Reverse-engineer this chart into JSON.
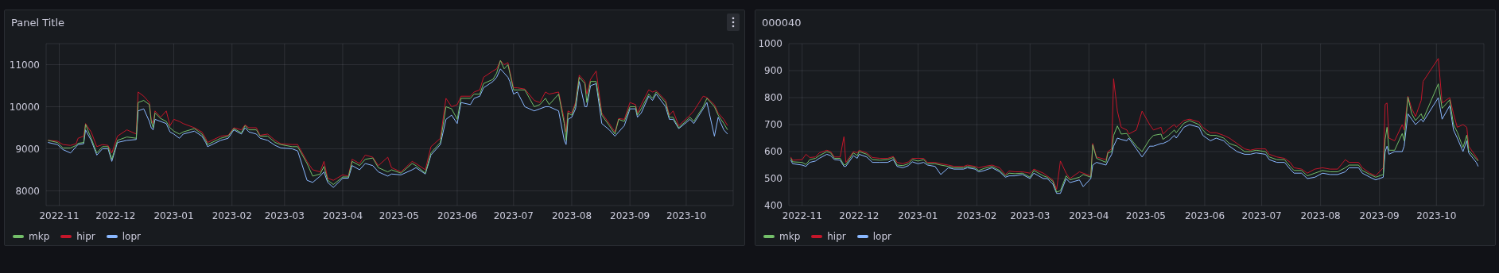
{
  "chart_data": [
    {
      "type": "line",
      "title": "Panel Title",
      "grid": true,
      "legend": "bottom",
      "xlim": [
        "2022-10-25",
        "2023-10-26"
      ],
      "ylim": [
        7650,
        11500
      ],
      "yticks": [
        8000,
        9000,
        10000,
        11000
      ],
      "xticks": [
        {
          "value": "2022-11-01",
          "label": "2022-11"
        },
        {
          "value": "2022-12-01",
          "label": "2022-12"
        },
        {
          "value": "2023-01-01",
          "label": "2023-01"
        },
        {
          "value": "2023-02-01",
          "label": "2023-02"
        },
        {
          "value": "2023-03-01",
          "label": "2023-03"
        },
        {
          "value": "2023-04-01",
          "label": "2023-04"
        },
        {
          "value": "2023-05-01",
          "label": "2023-05"
        },
        {
          "value": "2023-06-01",
          "label": "2023-06"
        },
        {
          "value": "2023-07-01",
          "label": "2023-07"
        },
        {
          "value": "2023-08-01",
          "label": "2023-08"
        },
        {
          "value": "2023-09-01",
          "label": "2023-09"
        },
        {
          "value": "2023-10-01",
          "label": "2023-10"
        }
      ],
      "x": [
        "2022-10-26",
        "2022-10-31",
        "2022-11-03",
        "2022-11-07",
        "2022-11-10",
        "2022-11-11",
        "2022-11-14",
        "2022-11-15",
        "2022-11-18",
        "2022-11-21",
        "2022-11-24",
        "2022-11-27",
        "2022-11-29",
        "2022-12-02",
        "2022-12-07",
        "2022-12-12",
        "2022-12-13",
        "2022-12-16",
        "2022-12-19",
        "2022-12-20",
        "2022-12-21",
        "2022-12-22",
        "2022-12-25",
        "2022-12-28",
        "2022-12-30",
        "2023-01-01",
        "2023-01-04",
        "2023-01-06",
        "2023-01-12",
        "2023-01-16",
        "2023-01-18",
        "2023-01-19",
        "2023-01-26",
        "2023-01-30",
        "2023-02-02",
        "2023-02-06",
        "2023-02-08",
        "2023-02-10",
        "2023-02-14",
        "2023-02-16",
        "2023-02-20",
        "2023-02-24",
        "2023-02-27",
        "2023-03-05",
        "2023-03-08",
        "2023-03-13",
        "2023-03-16",
        "2023-03-20",
        "2023-03-22",
        "2023-03-24",
        "2023-03-27",
        "2023-04-01",
        "2023-04-04",
        "2023-04-06",
        "2023-04-10",
        "2023-04-13",
        "2023-04-17",
        "2023-04-20",
        "2023-04-25",
        "2023-04-27",
        "2023-05-02",
        "2023-05-08",
        "2023-05-10",
        "2023-05-15",
        "2023-05-18",
        "2023-05-23",
        "2023-05-26",
        "2023-05-29",
        "2023-06-01",
        "2023-06-03",
        "2023-06-08",
        "2023-06-10",
        "2023-06-13",
        "2023-06-15",
        "2023-06-20",
        "2023-06-22",
        "2023-06-24",
        "2023-06-26",
        "2023-06-28",
        "2023-06-29",
        "2023-07-01",
        "2023-07-03",
        "2023-07-07",
        "2023-07-12",
        "2023-07-15",
        "2023-07-18",
        "2023-07-20",
        "2023-07-25",
        "2023-07-28",
        "2023-07-29",
        "2023-07-30",
        "2023-08-01",
        "2023-08-03",
        "2023-08-05",
        "2023-08-08",
        "2023-08-09",
        "2023-08-11",
        "2023-08-14",
        "2023-08-17",
        "2023-08-21",
        "2023-08-24",
        "2023-08-26",
        "2023-08-29",
        "2023-09-01",
        "2023-09-04",
        "2023-09-05",
        "2023-09-07",
        "2023-09-11",
        "2023-09-13",
        "2023-09-15",
        "2023-09-20",
        "2023-09-22",
        "2023-09-24",
        "2023-09-27",
        "2023-10-03",
        "2023-10-05",
        "2023-10-10",
        "2023-10-12",
        "2023-10-16",
        "2023-10-18",
        "2023-10-21",
        "2023-10-23"
      ],
      "series": [
        {
          "name": "mkp",
          "color": "#73bf69",
          "values": [
            9200,
            9150,
            9020,
            9020,
            9080,
            9130,
            9150,
            9580,
            9250,
            8900,
            9050,
            9050,
            8750,
            9200,
            9280,
            9250,
            10100,
            10150,
            10050,
            9650,
            9500,
            9850,
            9720,
            9650,
            9500,
            9420,
            9350,
            9400,
            9480,
            9350,
            9200,
            9100,
            9250,
            9300,
            9480,
            9380,
            9550,
            9450,
            9450,
            9300,
            9300,
            9150,
            9100,
            9050,
            9050,
            8650,
            8350,
            8400,
            8580,
            8250,
            8150,
            8330,
            8330,
            8700,
            8600,
            8750,
            8780,
            8550,
            8450,
            8500,
            8420,
            8650,
            8600,
            8420,
            8900,
            9150,
            10000,
            9950,
            9700,
            10200,
            10200,
            10300,
            10300,
            10550,
            10650,
            10800,
            11100,
            10900,
            11000,
            10800,
            10400,
            10400,
            10400,
            10000,
            10050,
            10200,
            10050,
            10300,
            9600,
            9200,
            9850,
            9800,
            10050,
            10700,
            10550,
            10100,
            10600,
            10600,
            9800,
            9550,
            9350,
            9700,
            9650,
            10000,
            10000,
            9800,
            9950,
            10300,
            10200,
            10350,
            10100,
            9750,
            9750,
            9500,
            9750,
            9650,
            10000,
            10200,
            10000,
            9800,
            9600,
            9450
          ]
        },
        {
          "name": "hipr",
          "color": "#c4162a",
          "values": [
            9200,
            9180,
            9100,
            9080,
            9120,
            9250,
            9300,
            9600,
            9400,
            9050,
            9100,
            9080,
            8900,
            9300,
            9450,
            9350,
            10350,
            10250,
            10100,
            9700,
            9600,
            9900,
            9750,
            9900,
            9550,
            9700,
            9650,
            9600,
            9500,
            9400,
            9250,
            9150,
            9300,
            9320,
            9500,
            9450,
            9570,
            9500,
            9500,
            9320,
            9350,
            9200,
            9120,
            9100,
            9100,
            8700,
            8500,
            8450,
            8700,
            8300,
            8250,
            8380,
            8350,
            8750,
            8650,
            8850,
            8800,
            8600,
            8800,
            8550,
            8450,
            8700,
            8650,
            8500,
            9050,
            9250,
            10200,
            10000,
            10050,
            10250,
            10250,
            10350,
            10400,
            10700,
            10850,
            10900,
            11100,
            11000,
            11050,
            10850,
            10450,
            10450,
            10420,
            10150,
            10100,
            10350,
            10300,
            10350,
            9700,
            9400,
            9900,
            9850,
            10100,
            10750,
            10600,
            10300,
            10650,
            10850,
            9850,
            9600,
            9400,
            9720,
            9700,
            10100,
            10050,
            9850,
            10050,
            10400,
            10350,
            10380,
            10150,
            9800,
            9900,
            9550,
            9800,
            9900,
            10250,
            10220,
            10050,
            9850,
            9700,
            9550
          ]
        },
        {
          "name": "lopr",
          "color": "#8ab8ff",
          "values": [
            9150,
            9100,
            8980,
            8900,
            9050,
            9100,
            9120,
            9450,
            9200,
            8850,
            9000,
            9000,
            8700,
            9150,
            9200,
            9220,
            9900,
            9950,
            9650,
            9500,
            9450,
            9700,
            9650,
            9600,
            9400,
            9350,
            9250,
            9350,
            9420,
            9300,
            9150,
            9050,
            9200,
            9250,
            9450,
            9350,
            9500,
            9400,
            9350,
            9250,
            9200,
            9080,
            9020,
            9000,
            8950,
            8250,
            8200,
            8350,
            8450,
            8200,
            8080,
            8300,
            8300,
            8600,
            8500,
            8650,
            8600,
            8450,
            8350,
            8400,
            8380,
            8500,
            8550,
            8400,
            8850,
            9100,
            9700,
            9800,
            9600,
            10100,
            10050,
            10200,
            10250,
            10450,
            10600,
            10700,
            10900,
            10800,
            10700,
            10600,
            10300,
            10350,
            10000,
            9900,
            9950,
            10000,
            10000,
            9900,
            9200,
            9100,
            9700,
            9750,
            9950,
            10600,
            10000,
            10000,
            10500,
            10550,
            9600,
            9450,
            9300,
            9400,
            9550,
            9950,
            9950,
            9750,
            9850,
            10250,
            10150,
            10300,
            10000,
            9700,
            9700,
            9480,
            9700,
            9600,
            9950,
            10100,
            9300,
            9750,
            9450,
            9350
          ]
        }
      ]
    },
    {
      "type": "line",
      "title": "000040",
      "grid": true,
      "legend": "bottom",
      "xlim": [
        "2022-10-25",
        "2023-10-26"
      ],
      "ylim": [
        400,
        1000
      ],
      "yticks": [
        400,
        500,
        600,
        700,
        800,
        900,
        1000
      ],
      "xticks": [
        {
          "value": "2022-11-01",
          "label": "2022-11"
        },
        {
          "value": "2022-12-01",
          "label": "2022-12"
        },
        {
          "value": "2023-01-01",
          "label": "2023-01"
        },
        {
          "value": "2023-02-01",
          "label": "2023-02"
        },
        {
          "value": "2023-03-01",
          "label": "2023-03"
        },
        {
          "value": "2023-04-01",
          "label": "2023-04"
        },
        {
          "value": "2023-05-01",
          "label": "2023-05"
        },
        {
          "value": "2023-06-01",
          "label": "2023-06"
        },
        {
          "value": "2023-07-01",
          "label": "2023-07"
        },
        {
          "value": "2023-08-01",
          "label": "2023-08"
        },
        {
          "value": "2023-09-01",
          "label": "2023-09"
        },
        {
          "value": "2023-10-01",
          "label": "2023-10"
        }
      ],
      "x": [
        "2022-10-26",
        "2022-10-27",
        "2022-11-01",
        "2022-11-03",
        "2022-11-05",
        "2022-11-08",
        "2022-11-10",
        "2022-11-14",
        "2022-11-16",
        "2022-11-18",
        "2022-11-21",
        "2022-11-23",
        "2022-11-24",
        "2022-11-28",
        "2022-11-30",
        "2022-12-01",
        "2022-12-05",
        "2022-12-08",
        "2022-12-12",
        "2022-12-16",
        "2022-12-19",
        "2022-12-21",
        "2022-12-24",
        "2022-12-27",
        "2022-12-29",
        "2023-01-01",
        "2023-01-04",
        "2023-01-06",
        "2023-01-10",
        "2023-01-13",
        "2023-01-17",
        "2023-01-20",
        "2023-01-25",
        "2023-01-27",
        "2023-01-31",
        "2023-02-02",
        "2023-02-05",
        "2023-02-09",
        "2023-02-13",
        "2023-02-16",
        "2023-02-18",
        "2023-02-21",
        "2023-02-25",
        "2023-03-01",
        "2023-03-03",
        "2023-03-08",
        "2023-03-10",
        "2023-03-13",
        "2023-03-15",
        "2023-03-17",
        "2023-03-20",
        "2023-03-22",
        "2023-03-27",
        "2023-03-29",
        "2023-04-02",
        "2023-04-03",
        "2023-04-05",
        "2023-04-10",
        "2023-04-11",
        "2023-04-13",
        "2023-04-14",
        "2023-04-16",
        "2023-04-18",
        "2023-04-21",
        "2023-04-22",
        "2023-04-26",
        "2023-04-29",
        "2023-05-03",
        "2023-05-05",
        "2023-05-09",
        "2023-05-10",
        "2023-05-13",
        "2023-05-16",
        "2023-05-17",
        "2023-05-21",
        "2023-05-24",
        "2023-05-29",
        "2023-05-31",
        "2023-06-02",
        "2023-06-04",
        "2023-06-07",
        "2023-06-11",
        "2023-06-14",
        "2023-06-18",
        "2023-06-22",
        "2023-06-25",
        "2023-06-28",
        "2023-07-03",
        "2023-07-05",
        "2023-07-09",
        "2023-07-13",
        "2023-07-16",
        "2023-07-18",
        "2023-07-22",
        "2023-07-25",
        "2023-07-29",
        "2023-08-02",
        "2023-08-06",
        "2023-08-10",
        "2023-08-14",
        "2023-08-16",
        "2023-08-21",
        "2023-08-23",
        "2023-08-27",
        "2023-08-30",
        "2023-09-03",
        "2023-09-04",
        "2023-09-05",
        "2023-09-06",
        "2023-09-09",
        "2023-09-13",
        "2023-09-14",
        "2023-09-16",
        "2023-09-18",
        "2023-09-20",
        "2023-09-23",
        "2023-09-24",
        "2023-10-02",
        "2023-10-04",
        "2023-10-08",
        "2023-10-10",
        "2023-10-12",
        "2023-10-15",
        "2023-10-17",
        "2023-10-18",
        "2023-10-22",
        "2023-10-23"
      ],
      "series": [
        {
          "name": "mkp",
          "color": "#73bf69",
          "values": [
            575,
            562,
            560,
            552,
            570,
            575,
            585,
            600,
            595,
            575,
            575,
            550,
            552,
            595,
            585,
            600,
            590,
            570,
            568,
            570,
            578,
            550,
            548,
            555,
            570,
            565,
            570,
            555,
            555,
            550,
            545,
            540,
            540,
            545,
            540,
            530,
            538,
            545,
            530,
            510,
            520,
            518,
            520,
            505,
            530,
            510,
            505,
            490,
            450,
            455,
            510,
            495,
            505,
            515,
            505,
            625,
            575,
            560,
            595,
            600,
            660,
            695,
            665,
            667,
            656,
            620,
            600,
            645,
            660,
            665,
            645,
            660,
            680,
            670,
            705,
            715,
            700,
            680,
            665,
            660,
            660,
            650,
            630,
            620,
            600,
            600,
            605,
            600,
            580,
            570,
            570,
            545,
            530,
            530,
            510,
            520,
            530,
            525,
            525,
            540,
            550,
            550,
            530,
            515,
            505,
            515,
            645,
            690,
            605,
            605,
            667,
            640,
            802,
            740,
            715,
            740,
            720,
            851,
            760,
            792,
            700,
            672,
            615,
            661,
            604,
            573,
            565
          ]
        },
        {
          "name": "hipr",
          "color": "#c4162a",
          "values": [
            580,
            568,
            570,
            590,
            578,
            580,
            595,
            605,
            600,
            580,
            580,
            655,
            560,
            600,
            595,
            605,
            595,
            578,
            575,
            575,
            582,
            560,
            555,
            562,
            575,
            575,
            575,
            560,
            560,
            555,
            550,
            545,
            545,
            550,
            545,
            540,
            545,
            550,
            540,
            515,
            528,
            525,
            525,
            520,
            535,
            520,
            510,
            495,
            460,
            565,
            520,
            500,
            525,
            520,
            510,
            630,
            580,
            570,
            600,
            610,
            870,
            750,
            690,
            680,
            665,
            680,
            750,
            700,
            680,
            690,
            665,
            685,
            700,
            690,
            715,
            720,
            710,
            690,
            680,
            670,
            670,
            660,
            650,
            630,
            610,
            605,
            610,
            610,
            590,
            580,
            575,
            560,
            540,
            535,
            520,
            535,
            540,
            535,
            535,
            570,
            560,
            560,
            540,
            520,
            510,
            540,
            775,
            780,
            650,
            640,
            700,
            680,
            805,
            760,
            730,
            790,
            860,
            945,
            780,
            800,
            740,
            690,
            700,
            690,
            620,
            580,
            568
          ]
        },
        {
          "name": "lopr",
          "color": "#8ab8ff",
          "values": [
            568,
            555,
            550,
            545,
            560,
            565,
            575,
            590,
            585,
            570,
            568,
            545,
            545,
            585,
            575,
            590,
            580,
            560,
            560,
            560,
            570,
            545,
            540,
            548,
            562,
            555,
            560,
            550,
            545,
            515,
            540,
            535,
            535,
            540,
            535,
            525,
            530,
            540,
            525,
            505,
            510,
            510,
            515,
            500,
            520,
            500,
            500,
            480,
            445,
            445,
            500,
            485,
            495,
            470,
            500,
            550,
            560,
            550,
            565,
            590,
            620,
            650,
            645,
            640,
            650,
            610,
            580,
            620,
            620,
            630,
            630,
            640,
            660,
            650,
            690,
            700,
            690,
            660,
            650,
            640,
            650,
            640,
            620,
            600,
            590,
            590,
            595,
            590,
            570,
            560,
            560,
            535,
            520,
            520,
            500,
            505,
            520,
            515,
            515,
            525,
            540,
            540,
            520,
            505,
            495,
            505,
            600,
            620,
            590,
            600,
            600,
            620,
            740,
            720,
            700,
            720,
            710,
            800,
            720,
            770,
            680,
            650,
            600,
            640,
            595,
            560,
            545
          ]
        }
      ]
    }
  ]
}
